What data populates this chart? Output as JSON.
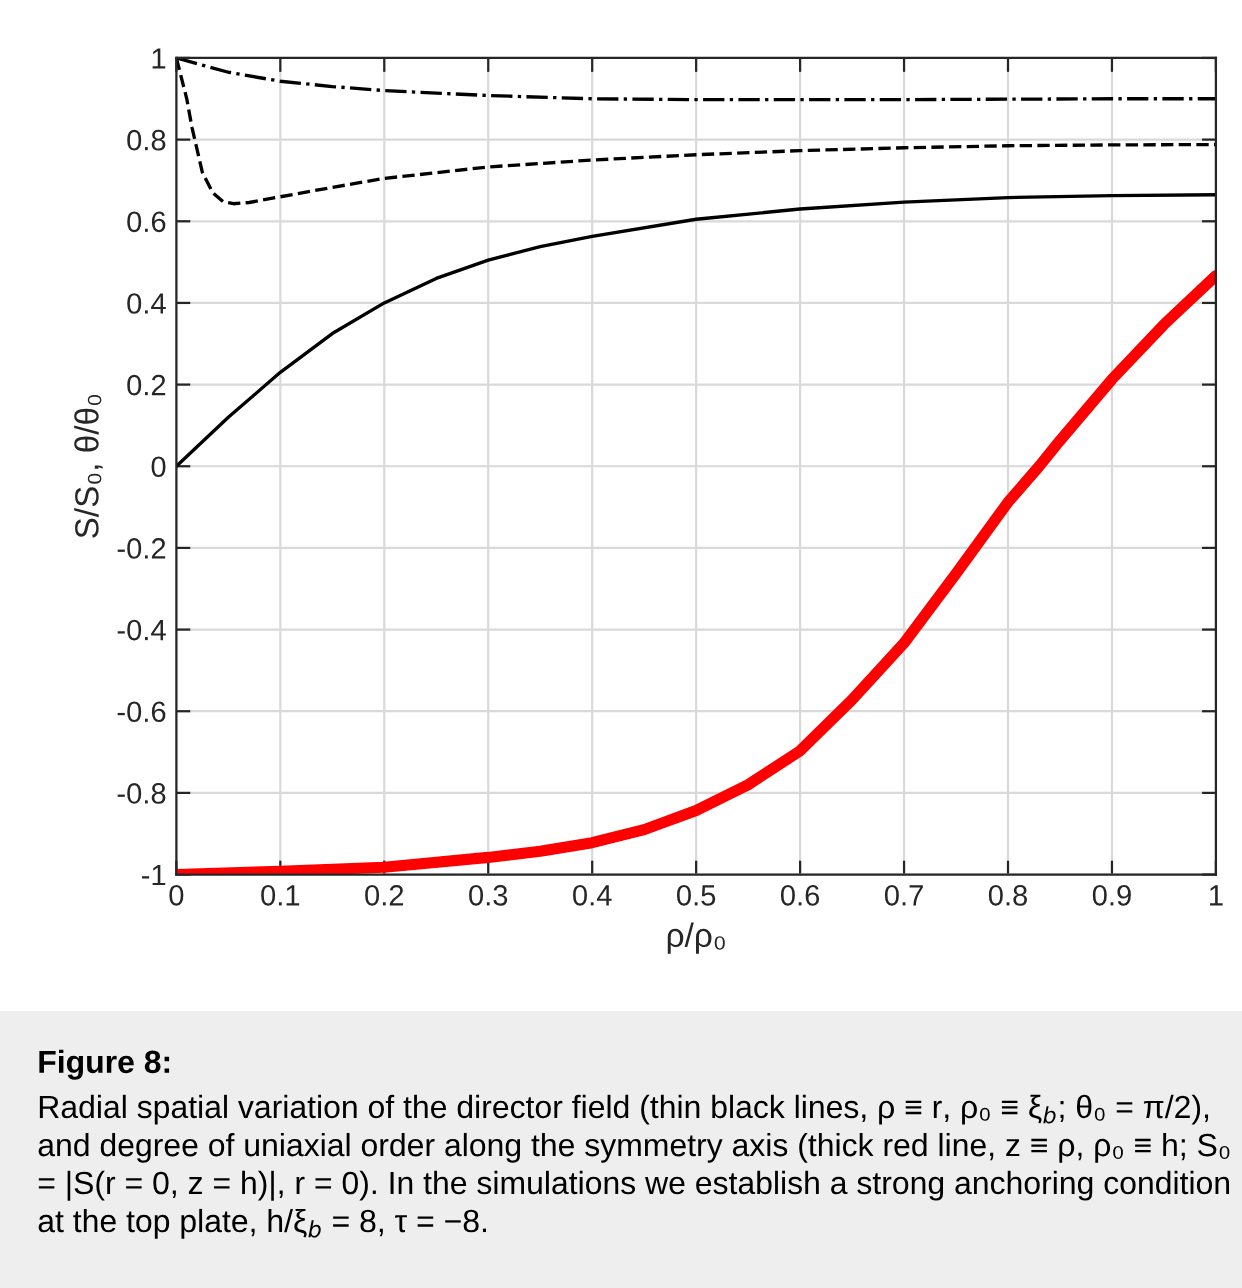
{
  "chart_data": {
    "type": "line",
    "xlabel": "ρ/ρ₀",
    "ylabel": "S/S₀, θ/θ₀",
    "xlim": [
      0,
      1
    ],
    "ylim": [
      -1,
      1
    ],
    "xticks": [
      0,
      0.1,
      0.2,
      0.3,
      0.4,
      0.5,
      0.6,
      0.7,
      0.8,
      0.9,
      1
    ],
    "yticks": [
      {
        "value": -1,
        "label": "-1"
      },
      {
        "value": -0.8,
        "label": "-0.8"
      },
      {
        "value": -0.6,
        "label": "-0.6"
      },
      {
        "value": -0.4,
        "label": "-0.4"
      },
      {
        "value": -0.2,
        "label": "-0.2"
      },
      0,
      0.2,
      0.4,
      0.6,
      0.8,
      1
    ],
    "grid": true,
    "marker": "none",
    "series": [
      {
        "color": "#000000",
        "line_style": "dashdot",
        "x": [
          0,
          0.05,
          0.1,
          0.15,
          0.2,
          0.3,
          0.4,
          0.5,
          0.6,
          0.7,
          0.8,
          0.9,
          1
        ],
        "values": [
          1,
          0.965,
          0.943,
          0.93,
          0.92,
          0.908,
          0.9,
          0.898,
          0.898,
          0.898,
          0.899,
          0.9,
          0.9
        ]
      },
      {
        "color": "#000000",
        "line_style": "dashed",
        "x": [
          0,
          0.01,
          0.015,
          0.025,
          0.035,
          0.045,
          0.055,
          0.07,
          0.1,
          0.15,
          0.2,
          0.3,
          0.4,
          0.5,
          0.6,
          0.7,
          0.8,
          0.9,
          1
        ],
        "values": [
          1,
          0.9,
          0.83,
          0.72,
          0.67,
          0.648,
          0.643,
          0.646,
          0.66,
          0.683,
          0.705,
          0.733,
          0.75,
          0.763,
          0.773,
          0.78,
          0.785,
          0.787,
          0.788
        ]
      },
      {
        "color": "#000000",
        "line_style": "solid",
        "x": [
          0,
          0.05,
          0.1,
          0.15,
          0.2,
          0.25,
          0.3,
          0.35,
          0.4,
          0.5,
          0.6,
          0.7,
          0.8,
          0.9,
          1
        ],
        "values": [
          0,
          0.12,
          0.23,
          0.325,
          0.4,
          0.46,
          0.505,
          0.538,
          0.563,
          0.605,
          0.63,
          0.647,
          0.658,
          0.663,
          0.665
        ]
      },
      {
        "color": "#ff0000",
        "line_style": "solid",
        "x": [
          0,
          0.1,
          0.2,
          0.3,
          0.35,
          0.4,
          0.45,
          0.5,
          0.55,
          0.6,
          0.65,
          0.7,
          0.75,
          0.8,
          0.83,
          0.85,
          0.9,
          0.95,
          1
        ],
        "values": [
          -1,
          -0.992,
          -0.982,
          -0.958,
          -0.943,
          -0.922,
          -0.89,
          -0.843,
          -0.78,
          -0.697,
          -0.572,
          -0.433,
          -0.263,
          -0.088,
          0,
          0.063,
          0.213,
          0.347,
          0.467
        ]
      }
    ],
    "annotations": [
      "Figure 8:",
      "Radial spatial variation of the director field (thin black lines, ρ ≡ r, ρ₀ ≡ ξ$_{b}$; θ₀ = π/2), and degree of uniaxial order along the symmetry axis (thick red line, z ≡ ρ, ρ₀ ≡ h; S₀ = |S(r = 0, z = h)|, r = 0). In the simulations we establish a strong anchoring condition at the top plate, h/ξ$_{b}$ = 8, τ = −8."
    ]
  }
}
